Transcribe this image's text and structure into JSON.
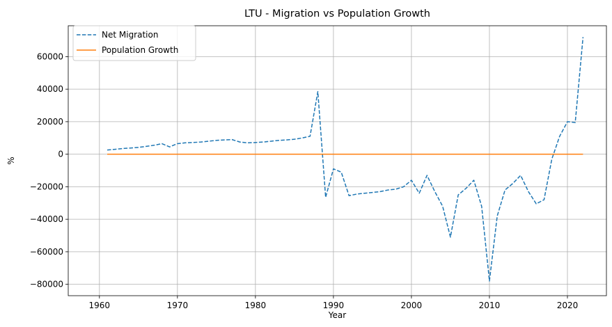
{
  "chart_data": {
    "type": "line",
    "title": "LTU - Migration vs Population Growth",
    "xlabel": "Year",
    "ylabel": "%",
    "xlim": [
      1956,
      2025
    ],
    "ylim": [
      -87000,
      79000
    ],
    "xticks": [
      1960,
      1970,
      1980,
      1990,
      2000,
      2010,
      2020
    ],
    "yticks": [
      -80000,
      -60000,
      -40000,
      -20000,
      0,
      20000,
      40000,
      60000
    ],
    "grid": true,
    "legend_position": "top-left",
    "series": [
      {
        "name": "Net Migration",
        "color": "#1f77b4",
        "style": "dashed",
        "x": [
          1961,
          1962,
          1963,
          1964,
          1965,
          1966,
          1967,
          1968,
          1969,
          1970,
          1971,
          1972,
          1973,
          1974,
          1975,
          1976,
          1977,
          1978,
          1979,
          1980,
          1981,
          1982,
          1983,
          1984,
          1985,
          1986,
          1987,
          1988,
          1989,
          1990,
          1991,
          1992,
          1993,
          1994,
          1995,
          1996,
          1997,
          1998,
          1999,
          2000,
          2001,
          2002,
          2003,
          2004,
          2005,
          2006,
          2007,
          2008,
          2009,
          2010,
          2011,
          2012,
          2013,
          2014,
          2015,
          2016,
          2017,
          2018,
          2019,
          2020,
          2021,
          2022
        ],
        "values": [
          2600,
          3000,
          3500,
          3800,
          4200,
          4800,
          5500,
          6500,
          4500,
          6500,
          7000,
          7200,
          7500,
          8000,
          8500,
          8800,
          9000,
          7500,
          7000,
          7200,
          7500,
          8000,
          8500,
          8800,
          9200,
          10000,
          11000,
          38500,
          -26500,
          -9000,
          -11000,
          -25500,
          -24500,
          -24000,
          -23500,
          -23000,
          -22000,
          -21500,
          -20000,
          -16000,
          -24000,
          -13000,
          -23000,
          -32000,
          -51000,
          -25000,
          -21000,
          -16000,
          -32000,
          -78000,
          -38000,
          -22000,
          -18000,
          -13000,
          -23000,
          -30500,
          -28000,
          -3000,
          11000,
          20000,
          19500,
          72000
        ]
      },
      {
        "name": "Population Growth",
        "color": "#ff7f0e",
        "style": "solid",
        "x": [
          1961,
          1962,
          1963,
          1964,
          1965,
          1966,
          1967,
          1968,
          1969,
          1970,
          1971,
          1972,
          1973,
          1974,
          1975,
          1976,
          1977,
          1978,
          1979,
          1980,
          1981,
          1982,
          1983,
          1984,
          1985,
          1986,
          1987,
          1988,
          1989,
          1990,
          1991,
          1992,
          1993,
          1994,
          1995,
          1996,
          1997,
          1998,
          1999,
          2000,
          2001,
          2002,
          2003,
          2004,
          2005,
          2006,
          2007,
          2008,
          2009,
          2010,
          2011,
          2012,
          2013,
          2014,
          2015,
          2016,
          2017,
          2018,
          2019,
          2020,
          2021,
          2022
        ],
        "values": [
          1.4,
          1.4,
          1.4,
          1.3,
          1.3,
          1.2,
          1.2,
          1.1,
          1.0,
          0.9,
          0.9,
          0.9,
          0.9,
          0.8,
          0.8,
          0.8,
          0.8,
          0.8,
          0.7,
          0.7,
          0.7,
          0.7,
          0.8,
          0.8,
          0.8,
          0.9,
          0.9,
          0.9,
          0.9,
          0.6,
          0.3,
          -0.1,
          -0.3,
          -0.5,
          -0.6,
          -0.5,
          -0.5,
          -0.4,
          -0.4,
          -0.8,
          -1.0,
          -0.4,
          -0.5,
          -0.6,
          -0.9,
          -1.0,
          -0.7,
          -0.6,
          -0.8,
          -1.7,
          -2.0,
          -1.2,
          -1.0,
          -0.8,
          -1.0,
          -1.5,
          -1.5,
          -1.0,
          -0.2,
          0.5,
          0.3,
          1.0
        ]
      }
    ]
  }
}
